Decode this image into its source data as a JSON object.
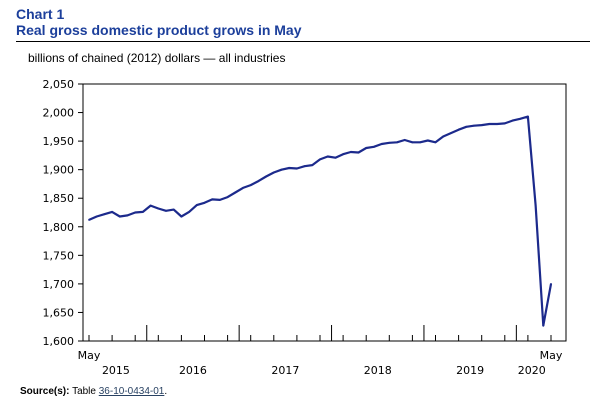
{
  "chart_number": "Chart 1",
  "title": "Real gross domestic product grows in May",
  "units_label": "billions of chained (2012) dollars — all industries",
  "source": {
    "label": "Source(s):",
    "prefix": "Table",
    "table_id": "36-10-0434-01",
    "suffix": "."
  },
  "chart_data": {
    "type": "line",
    "title": "Real gross domestic product grows in May",
    "ylabel": "billions of chained (2012) dollars — all industries",
    "xlabel": "",
    "ylim": [
      1600,
      2050
    ],
    "yticks": [
      1600,
      1650,
      1700,
      1750,
      1800,
      1850,
      1900,
      1950,
      2000,
      2050
    ],
    "ytick_labels": [
      "1,600",
      "1,650",
      "1,700",
      "1,750",
      "1,800",
      "1,850",
      "1,900",
      "1,950",
      "2,000",
      "2,050"
    ],
    "x_month_labels": [
      {
        "month_index": 0,
        "text": "May"
      },
      {
        "month_index": 60,
        "text": "May"
      }
    ],
    "year_labels": [
      {
        "month_index": 3.5,
        "text": "2015"
      },
      {
        "month_index": 13.5,
        "text": "2016"
      },
      {
        "month_index": 25.5,
        "text": "2017"
      },
      {
        "month_index": 37.5,
        "text": "2018"
      },
      {
        "month_index": 49.5,
        "text": "2019"
      },
      {
        "month_index": 57.5,
        "text": "2020"
      }
    ],
    "year_boundaries": [
      7.5,
      19.5,
      31.5,
      43.5,
      55.5
    ],
    "grid": false,
    "line_color": "#1c2a8c",
    "series": [
      {
        "x": [
          "2015-05",
          "2015-06",
          "2015-07",
          "2015-08",
          "2015-09",
          "2015-10",
          "2015-11",
          "2015-12",
          "2016-01",
          "2016-02",
          "2016-03",
          "2016-04",
          "2016-05",
          "2016-06",
          "2016-07",
          "2016-08",
          "2016-09",
          "2016-10",
          "2016-11",
          "2016-12",
          "2017-01",
          "2017-02",
          "2017-03",
          "2017-04",
          "2017-05",
          "2017-06",
          "2017-07",
          "2017-08",
          "2017-09",
          "2017-10",
          "2017-11",
          "2017-12",
          "2018-01",
          "2018-02",
          "2018-03",
          "2018-04",
          "2018-05",
          "2018-06",
          "2018-07",
          "2018-08",
          "2018-09",
          "2018-10",
          "2018-11",
          "2018-12",
          "2019-01",
          "2019-02",
          "2019-03",
          "2019-04",
          "2019-05",
          "2019-06",
          "2019-07",
          "2019-08",
          "2019-09",
          "2019-10",
          "2019-11",
          "2019-12",
          "2020-01",
          "2020-02",
          "2020-03",
          "2020-04",
          "2020-05"
        ],
        "values": [
          1812,
          1818,
          1822,
          1826,
          1818,
          1820,
          1825,
          1826,
          1837,
          1832,
          1828,
          1830,
          1818,
          1826,
          1838,
          1842,
          1848,
          1847,
          1852,
          1860,
          1868,
          1873,
          1880,
          1888,
          1895,
          1900,
          1903,
          1902,
          1906,
          1908,
          1918,
          1923,
          1921,
          1927,
          1931,
          1930,
          1938,
          1940,
          1945,
          1947,
          1948,
          1952,
          1948,
          1948,
          1951,
          1948,
          1958,
          1964,
          1970,
          1975,
          1977,
          1978,
          1980,
          1980,
          1981,
          1986,
          1989,
          1993,
          1838,
          1627,
          1700
        ]
      }
    ]
  }
}
